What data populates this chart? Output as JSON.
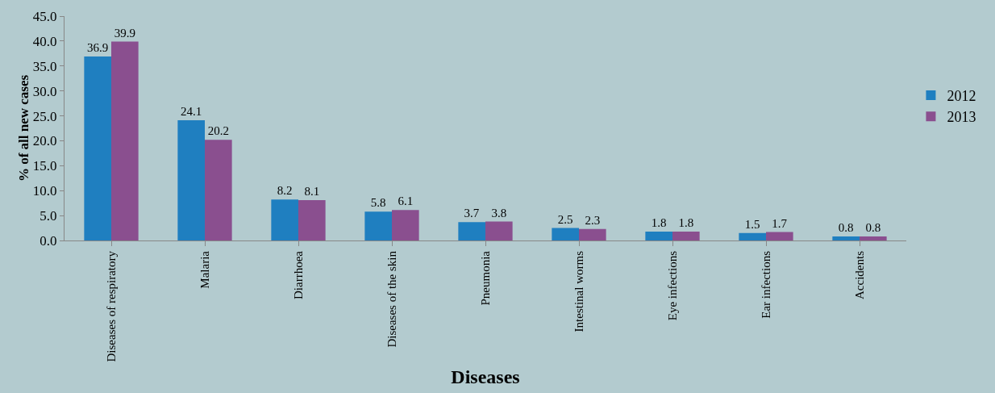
{
  "chart_data": {
    "type": "bar",
    "xlabel": "Diseases",
    "ylabel": "% of all new cases",
    "categories": [
      "Diseases of respiratory",
      "Malaria",
      "Diarrhoea",
      "Diseases of the skin",
      "Pneumonia",
      "Intestinal worms",
      "Eye infections",
      "Ear infections",
      "Accidents"
    ],
    "series": [
      {
        "name": "2012",
        "color": "#1f7fc0",
        "values": [
          36.9,
          24.1,
          8.2,
          5.8,
          3.7,
          2.5,
          1.8,
          1.5,
          0.8
        ]
      },
      {
        "name": "2013",
        "color": "#8a4f8f",
        "values": [
          39.9,
          20.2,
          8.1,
          6.1,
          3.8,
          2.3,
          1.8,
          1.7,
          0.8
        ]
      }
    ],
    "ylim": [
      0,
      45
    ],
    "yticks": [
      {
        "value": 0,
        "label": "0.0"
      },
      {
        "value": 5,
        "label": "5.0"
      },
      {
        "value": 10,
        "label": "10.0"
      },
      {
        "value": 15,
        "label": "15.0"
      },
      {
        "value": 20,
        "label": "20.0"
      },
      {
        "value": 25,
        "label": "25.0"
      },
      {
        "value": 30,
        "label": "30.0"
      },
      {
        "value": 35,
        "label": "35.0"
      },
      {
        "value": 40,
        "label": "40.0"
      },
      {
        "value": 45,
        "label": "45.0"
      }
    ],
    "data_labels": true,
    "grid": false,
    "legend": "right"
  }
}
